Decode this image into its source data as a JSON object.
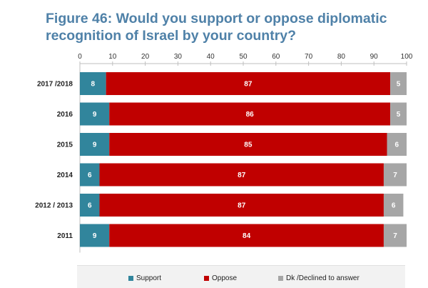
{
  "title_lines": [
    "Figure 46: Would you support or oppose diplomatic",
    "recognition of Israel by your country?"
  ],
  "chart_data": {
    "type": "bar",
    "orientation": "horizontal",
    "stacked": true,
    "categories": [
      "2017 /2018",
      "2016",
      "2015",
      "2014",
      "2012 / 2013",
      "2011"
    ],
    "series": [
      {
        "name": "Support",
        "color": "#31859c",
        "values": [
          8,
          9,
          9,
          6,
          6,
          9
        ]
      },
      {
        "name": "Oppose",
        "color": "#c00000",
        "values": [
          87,
          86,
          85,
          87,
          87,
          84
        ]
      },
      {
        "name": "Dk /Declined to answer",
        "color": "#a6a6a6",
        "values": [
          5,
          5,
          6,
          7,
          6,
          7
        ]
      }
    ],
    "xlim": [
      0,
      100
    ],
    "xticks": [
      0,
      10,
      20,
      30,
      40,
      50,
      60,
      70,
      80,
      90,
      100
    ],
    "grid": false,
    "legend_position": "bottom"
  }
}
